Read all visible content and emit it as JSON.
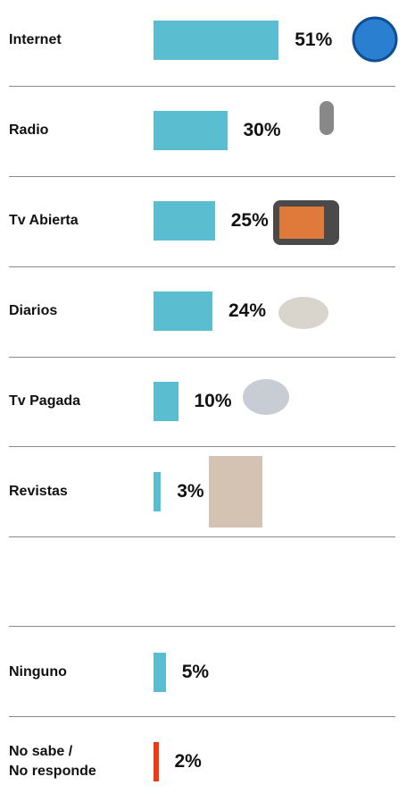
{
  "chart_data": {
    "type": "bar",
    "categories": [
      "Internet",
      "Radio",
      "Tv Abierta",
      "Diarios",
      "Tv Pagada",
      "Revistas",
      "Ninguno",
      "No sabe /\nNo responde"
    ],
    "values": [
      51,
      30,
      25,
      24,
      10,
      3,
      5,
      2
    ],
    "value_labels": [
      "51%",
      "30%",
      "25%",
      "24%",
      "10%",
      "3%",
      "5%",
      "2%"
    ],
    "colors": [
      "#5bbdd0",
      "#5bbdd0",
      "#5bbdd0",
      "#5bbdd0",
      "#5bbdd0",
      "#5bbdd0",
      "#5bbdd0",
      "#f03a17"
    ]
  }
}
